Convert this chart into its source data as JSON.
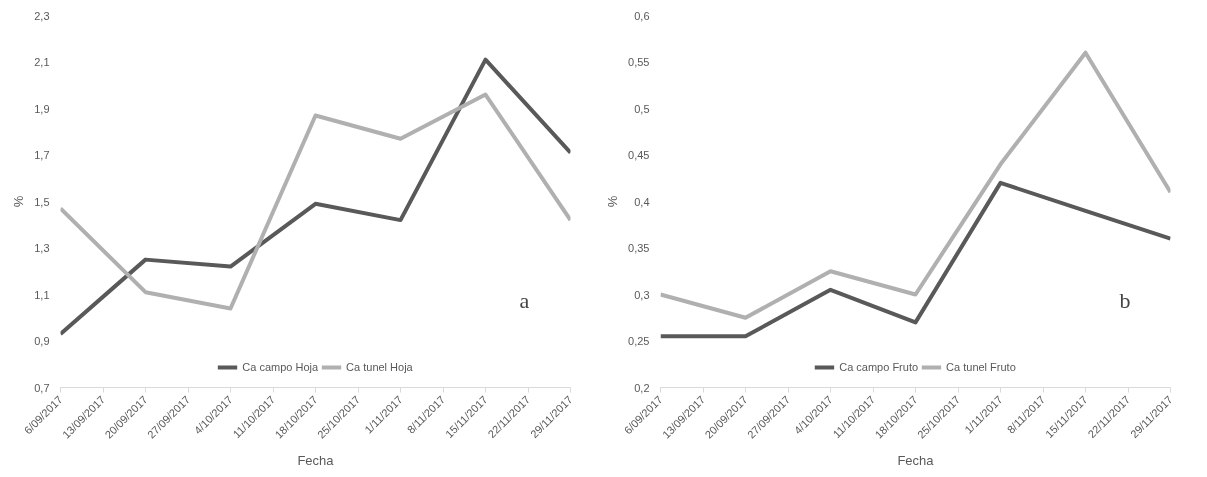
{
  "chart_data": [
    {
      "type": "line",
      "xlabel": "Fecha",
      "ylabel": "%",
      "annotations": [
        "a"
      ],
      "grid": false,
      "legend": "bottom",
      "marker": "none",
      "line_style": "solid",
      "x": [
        "2017-09-06",
        "2017-09-20",
        "2017-10-04",
        "2017-10-18",
        "2017-11-01",
        "2017-11-15",
        "2017-11-29"
      ],
      "xlim": [
        "2017-09-06",
        "2017-11-29"
      ],
      "xticks": [
        {
          "value": "2017-09-06",
          "label": "6/09/2017"
        },
        {
          "value": "2017-09-13",
          "label": "13/09/2017"
        },
        {
          "value": "2017-09-20",
          "label": "20/09/2017"
        },
        {
          "value": "2017-09-27",
          "label": "27/09/2017"
        },
        {
          "value": "2017-10-04",
          "label": "4/10/2017"
        },
        {
          "value": "2017-10-11",
          "label": "11/10/2017"
        },
        {
          "value": "2017-10-18",
          "label": "18/10/2017"
        },
        {
          "value": "2017-10-25",
          "label": "25/10/2017"
        },
        {
          "value": "2017-11-01",
          "label": "1/11/2017"
        },
        {
          "value": "2017-11-08",
          "label": "8/11/2017"
        },
        {
          "value": "2017-11-15",
          "label": "15/11/2017"
        },
        {
          "value": "2017-11-22",
          "label": "22/11/2017"
        },
        {
          "value": "2017-11-29",
          "label": "29/11/2017"
        }
      ],
      "ylim": [
        0.7,
        2.3
      ],
      "yticks": [
        {
          "value": 0.7,
          "label": "0,7"
        },
        {
          "value": 0.9,
          "label": "0,9"
        },
        {
          "value": 1.1,
          "label": "1,1"
        },
        {
          "value": 1.3,
          "label": "1,3"
        },
        {
          "value": 1.5,
          "label": "1,5"
        },
        {
          "value": 1.7,
          "label": "1,7"
        },
        {
          "value": 1.9,
          "label": "1,9"
        },
        {
          "value": 2.1,
          "label": "2,1"
        },
        {
          "value": 2.3,
          "label": "2,3"
        }
      ],
      "series": [
        {
          "name": "Ca campo Hoja",
          "color": "#595959",
          "values": [
            0.93,
            1.25,
            1.22,
            1.49,
            1.42,
            2.11,
            1.71
          ]
        },
        {
          "name": "Ca tunel Hoja",
          "color": "#b0b0b0",
          "values": [
            1.47,
            1.11,
            1.04,
            1.87,
            1.77,
            1.96,
            1.42
          ]
        }
      ]
    },
    {
      "type": "line",
      "xlabel": "Fecha",
      "ylabel": "%",
      "annotations": [
        "b"
      ],
      "grid": false,
      "legend": "bottom",
      "marker": "none",
      "line_style": "solid",
      "x": [
        "2017-09-06",
        "2017-09-20",
        "2017-10-04",
        "2017-10-18",
        "2017-11-01",
        "2017-11-15",
        "2017-11-29"
      ],
      "xlim": [
        "2017-09-06",
        "2017-11-29"
      ],
      "xticks": [
        {
          "value": "2017-09-06",
          "label": "6/09/2017"
        },
        {
          "value": "2017-09-13",
          "label": "13/09/2017"
        },
        {
          "value": "2017-09-20",
          "label": "20/09/2017"
        },
        {
          "value": "2017-09-27",
          "label": "27/09/2017"
        },
        {
          "value": "2017-10-04",
          "label": "4/10/2017"
        },
        {
          "value": "2017-10-11",
          "label": "11/10/2017"
        },
        {
          "value": "2017-10-18",
          "label": "18/10/2017"
        },
        {
          "value": "2017-10-25",
          "label": "25/10/2017"
        },
        {
          "value": "2017-11-01",
          "label": "1/11/2017"
        },
        {
          "value": "2017-11-08",
          "label": "8/11/2017"
        },
        {
          "value": "2017-11-15",
          "label": "15/11/2017"
        },
        {
          "value": "2017-11-22",
          "label": "22/11/2017"
        },
        {
          "value": "2017-11-29",
          "label": "29/11/2017"
        }
      ],
      "ylim": [
        0.2,
        0.6
      ],
      "yticks": [
        {
          "value": 0.2,
          "label": "0,2"
        },
        {
          "value": 0.25,
          "label": "0,25"
        },
        {
          "value": 0.3,
          "label": "0,3"
        },
        {
          "value": 0.35,
          "label": "0,35"
        },
        {
          "value": 0.4,
          "label": "0,4"
        },
        {
          "value": 0.45,
          "label": "0,45"
        },
        {
          "value": 0.5,
          "label": "0,5"
        },
        {
          "value": 0.55,
          "label": "0,55"
        },
        {
          "value": 0.6,
          "label": "0,6"
        }
      ],
      "series": [
        {
          "name": "Ca campo Fruto",
          "color": "#595959",
          "values": [
            0.255,
            0.255,
            0.305,
            0.27,
            0.42,
            0.39,
            0.36
          ]
        },
        {
          "name": "Ca tunel Fruto",
          "color": "#b0b0b0",
          "values": [
            0.3,
            0.275,
            0.325,
            0.3,
            0.44,
            0.56,
            0.41
          ]
        }
      ]
    }
  ]
}
